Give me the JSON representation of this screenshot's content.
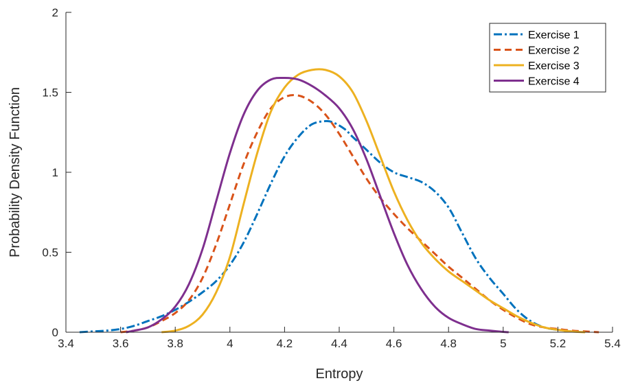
{
  "chart_data": {
    "type": "line",
    "title": "",
    "xlabel": "Entropy",
    "ylabel": "Probability Density Function",
    "xlim": [
      3.4,
      5.4
    ],
    "ylim": [
      0,
      2
    ],
    "xticks": [
      3.4,
      3.6,
      3.8,
      4,
      4.2,
      4.4,
      4.6,
      4.8,
      5,
      5.2,
      5.4
    ],
    "xtick_labels": [
      "3.4",
      "3.6",
      "3.8",
      "4",
      "4.2",
      "4.4",
      "4.6",
      "4.8",
      "5",
      "5.2",
      "5.4"
    ],
    "yticks": [
      0,
      0.5,
      1,
      1.5,
      2
    ],
    "ytick_labels": [
      "0",
      "0.5",
      "1",
      "1.5",
      "2"
    ],
    "grid": false,
    "legend_position": "top-right",
    "series": [
      {
        "name": "Exercise 1",
        "color": "#0072BD",
        "style": "dash-dot",
        "x": [
          3.45,
          3.5,
          3.55,
          3.6,
          3.65,
          3.7,
          3.75,
          3.8,
          3.85,
          3.9,
          3.95,
          4.0,
          4.05,
          4.1,
          4.15,
          4.2,
          4.25,
          4.3,
          4.35,
          4.38,
          4.42,
          4.45,
          4.5,
          4.55,
          4.6,
          4.65,
          4.7,
          4.75,
          4.8,
          4.85,
          4.9,
          4.95,
          5.0,
          5.05,
          5.1,
          5.15,
          5.2,
          5.25
        ],
        "y": [
          0.0,
          0.005,
          0.01,
          0.02,
          0.04,
          0.07,
          0.1,
          0.14,
          0.19,
          0.25,
          0.32,
          0.42,
          0.56,
          0.74,
          0.93,
          1.1,
          1.22,
          1.3,
          1.32,
          1.31,
          1.27,
          1.22,
          1.14,
          1.06,
          1.0,
          0.97,
          0.94,
          0.88,
          0.78,
          0.62,
          0.46,
          0.34,
          0.24,
          0.14,
          0.07,
          0.03,
          0.015,
          0.005
        ]
      },
      {
        "name": "Exercise 2",
        "color": "#D95319",
        "style": "dashed",
        "x": [
          3.6,
          3.65,
          3.7,
          3.75,
          3.8,
          3.85,
          3.9,
          3.95,
          4.0,
          4.05,
          4.1,
          4.15,
          4.2,
          4.25,
          4.3,
          4.35,
          4.4,
          4.45,
          4.5,
          4.55,
          4.6,
          4.65,
          4.7,
          4.75,
          4.8,
          4.85,
          4.9,
          4.95,
          5.0,
          5.05,
          5.1,
          5.15,
          5.2,
          5.25,
          5.3,
          5.35
        ],
        "y": [
          0.0,
          0.01,
          0.03,
          0.07,
          0.12,
          0.2,
          0.34,
          0.55,
          0.8,
          1.05,
          1.25,
          1.4,
          1.47,
          1.48,
          1.44,
          1.36,
          1.24,
          1.1,
          0.96,
          0.84,
          0.74,
          0.65,
          0.57,
          0.49,
          0.41,
          0.34,
          0.27,
          0.2,
          0.14,
          0.09,
          0.05,
          0.03,
          0.02,
          0.01,
          0.005,
          0.0
        ]
      },
      {
        "name": "Exercise 3",
        "color": "#EDB120",
        "style": "solid",
        "x": [
          3.75,
          3.8,
          3.85,
          3.9,
          3.95,
          4.0,
          4.05,
          4.1,
          4.15,
          4.2,
          4.25,
          4.3,
          4.35,
          4.4,
          4.45,
          4.5,
          4.55,
          4.6,
          4.65,
          4.7,
          4.75,
          4.8,
          4.85,
          4.9,
          4.95,
          5.0,
          5.05,
          5.1,
          5.15,
          5.2,
          5.25,
          5.3
        ],
        "y": [
          0.0,
          0.01,
          0.04,
          0.11,
          0.25,
          0.47,
          0.8,
          1.12,
          1.38,
          1.53,
          1.61,
          1.64,
          1.64,
          1.6,
          1.5,
          1.32,
          1.1,
          0.88,
          0.7,
          0.56,
          0.46,
          0.38,
          0.32,
          0.26,
          0.2,
          0.15,
          0.1,
          0.06,
          0.03,
          0.015,
          0.005,
          0.0
        ]
      },
      {
        "name": "Exercise 4",
        "color": "#7E2F8E",
        "style": "solid",
        "x": [
          3.62,
          3.65,
          3.7,
          3.75,
          3.8,
          3.85,
          3.9,
          3.95,
          4.0,
          4.05,
          4.1,
          4.15,
          4.2,
          4.25,
          4.3,
          4.35,
          4.4,
          4.45,
          4.5,
          4.55,
          4.6,
          4.65,
          4.7,
          4.75,
          4.8,
          4.85,
          4.9,
          4.95,
          5.0,
          5.02
        ],
        "y": [
          0.0,
          0.01,
          0.03,
          0.08,
          0.16,
          0.3,
          0.52,
          0.82,
          1.12,
          1.36,
          1.51,
          1.58,
          1.59,
          1.58,
          1.54,
          1.48,
          1.4,
          1.27,
          1.08,
          0.85,
          0.62,
          0.42,
          0.27,
          0.16,
          0.09,
          0.05,
          0.02,
          0.01,
          0.002,
          0.0
        ]
      }
    ]
  }
}
